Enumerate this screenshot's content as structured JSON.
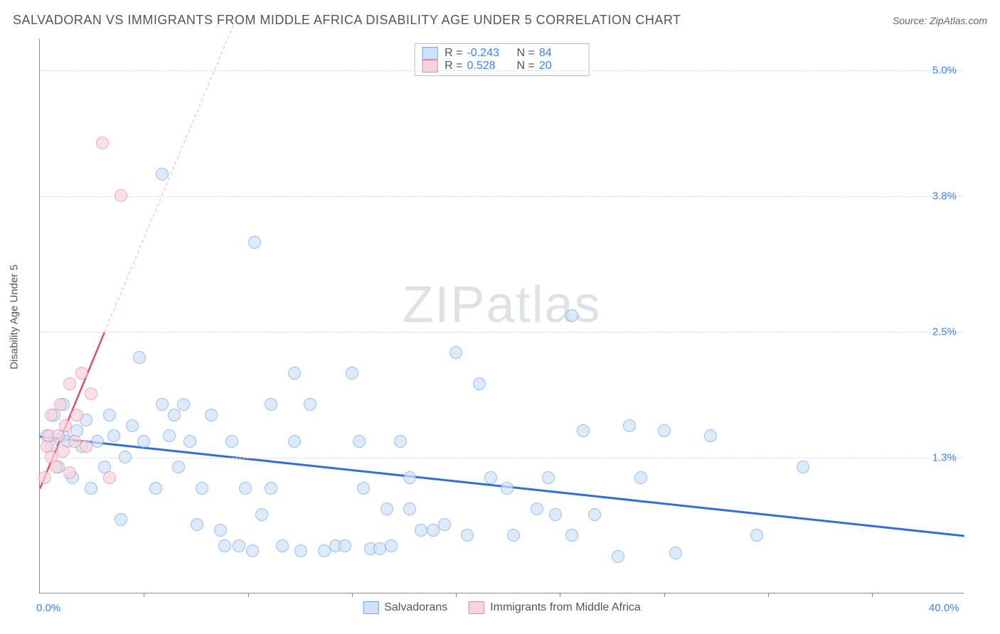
{
  "header": {
    "title": "SALVADORAN VS IMMIGRANTS FROM MIDDLE AFRICA DISABILITY AGE UNDER 5 CORRELATION CHART",
    "source_label": "Source: ",
    "source_value": "ZipAtlas.com"
  },
  "chart": {
    "type": "scatter",
    "ylabel": "Disability Age Under 5",
    "watermark": "ZIPatlas",
    "xlim": [
      0,
      40
    ],
    "ylim": [
      0,
      5.3
    ],
    "xtick_labels": [
      "0.0%",
      "40.0%"
    ],
    "xtick_positions": [
      0,
      40
    ],
    "xtick_minor": [
      4.5,
      9,
      13.5,
      18,
      22.5,
      27,
      31.5,
      36
    ],
    "ytick_labels": [
      "1.3%",
      "2.5%",
      "3.8%",
      "5.0%"
    ],
    "ytick_positions": [
      1.3,
      2.5,
      3.8,
      5.0
    ],
    "background_color": "#ffffff",
    "grid_color": "#dddddd",
    "axis_color": "#888888",
    "label_color": "#3b82f6",
    "marker_radius": 9,
    "marker_stroke_width": 1.5,
    "series": [
      {
        "name": "Salvadorans",
        "fill": "#cfe2f9",
        "stroke": "#6ea6e6",
        "fill_opacity": 0.7,
        "R": "-0.243",
        "N": "84",
        "trend": {
          "x1": 0,
          "y1": 1.5,
          "x2": 40,
          "y2": 0.55,
          "color": "#2f6fd6",
          "width": 3,
          "dash": "none"
        },
        "points": [
          [
            0.3,
            1.5
          ],
          [
            0.5,
            1.4
          ],
          [
            0.6,
            1.7
          ],
          [
            0.8,
            1.2
          ],
          [
            1.0,
            1.5
          ],
          [
            1.0,
            1.8
          ],
          [
            1.2,
            1.45
          ],
          [
            1.4,
            1.1
          ],
          [
            1.6,
            1.55
          ],
          [
            1.8,
            1.4
          ],
          [
            2.0,
            1.65
          ],
          [
            2.2,
            1.0
          ],
          [
            2.5,
            1.45
          ],
          [
            2.8,
            1.2
          ],
          [
            3.0,
            1.7
          ],
          [
            3.2,
            1.5
          ],
          [
            3.5,
            0.7
          ],
          [
            3.7,
            1.3
          ],
          [
            4.0,
            1.6
          ],
          [
            4.3,
            2.25
          ],
          [
            4.5,
            1.45
          ],
          [
            5.0,
            1.0
          ],
          [
            5.3,
            1.8
          ],
          [
            5.3,
            4.0
          ],
          [
            5.6,
            1.5
          ],
          [
            5.8,
            1.7
          ],
          [
            6.0,
            1.2
          ],
          [
            6.2,
            1.8
          ],
          [
            6.5,
            1.45
          ],
          [
            6.8,
            0.65
          ],
          [
            7.0,
            1.0
          ],
          [
            7.4,
            1.7
          ],
          [
            7.8,
            0.6
          ],
          [
            8.0,
            0.45
          ],
          [
            8.3,
            1.45
          ],
          [
            8.6,
            0.45
          ],
          [
            8.9,
            1.0
          ],
          [
            9.2,
            0.4
          ],
          [
            9.3,
            3.35
          ],
          [
            9.6,
            0.75
          ],
          [
            10.0,
            1.0
          ],
          [
            10.0,
            1.8
          ],
          [
            10.5,
            0.45
          ],
          [
            11.0,
            2.1
          ],
          [
            11.0,
            1.45
          ],
          [
            11.3,
            0.4
          ],
          [
            11.7,
            1.8
          ],
          [
            12.3,
            0.4
          ],
          [
            12.8,
            0.45
          ],
          [
            13.2,
            0.45
          ],
          [
            13.5,
            2.1
          ],
          [
            13.8,
            1.45
          ],
          [
            14.0,
            1.0
          ],
          [
            14.3,
            0.42
          ],
          [
            14.7,
            0.42
          ],
          [
            15.0,
            0.8
          ],
          [
            15.2,
            0.45
          ],
          [
            15.6,
            1.45
          ],
          [
            16.0,
            0.8
          ],
          [
            16.0,
            1.1
          ],
          [
            16.5,
            0.6
          ],
          [
            17.0,
            0.6
          ],
          [
            17.5,
            0.65
          ],
          [
            18.0,
            2.3
          ],
          [
            18.5,
            0.55
          ],
          [
            19.0,
            2.0
          ],
          [
            19.5,
            1.1
          ],
          [
            20.2,
            1.0
          ],
          [
            20.5,
            0.55
          ],
          [
            21.5,
            0.8
          ],
          [
            22.0,
            1.1
          ],
          [
            22.3,
            0.75
          ],
          [
            23.0,
            0.55
          ],
          [
            23.0,
            2.65
          ],
          [
            23.5,
            1.55
          ],
          [
            24.0,
            0.75
          ],
          [
            25.0,
            0.35
          ],
          [
            25.5,
            1.6
          ],
          [
            26.0,
            1.1
          ],
          [
            27.0,
            1.55
          ],
          [
            27.5,
            0.38
          ],
          [
            29.0,
            1.5
          ],
          [
            31.0,
            0.55
          ],
          [
            33.0,
            1.2
          ]
        ]
      },
      {
        "name": "Immigrants from Middle Africa",
        "fill": "#f9d4dc",
        "stroke": "#e688a0",
        "fill_opacity": 0.7,
        "R": "0.528",
        "N": "20",
        "trend_solid": {
          "x1": 0,
          "y1": 1.0,
          "x2": 2.8,
          "y2": 2.5,
          "color": "#e34b72",
          "width": 2.5
        },
        "trend_dash": {
          "x1": 2.8,
          "y1": 2.5,
          "x2": 8.5,
          "y2": 5.5,
          "color": "#f0a8ba",
          "width": 1,
          "dash": "4,4"
        },
        "points": [
          [
            0.2,
            1.1
          ],
          [
            0.3,
            1.4
          ],
          [
            0.4,
            1.5
          ],
          [
            0.5,
            1.3
          ],
          [
            0.5,
            1.7
          ],
          [
            0.7,
            1.2
          ],
          [
            0.8,
            1.5
          ],
          [
            0.9,
            1.8
          ],
          [
            1.0,
            1.35
          ],
          [
            1.1,
            1.6
          ],
          [
            1.3,
            1.15
          ],
          [
            1.3,
            2.0
          ],
          [
            1.5,
            1.45
          ],
          [
            1.6,
            1.7
          ],
          [
            1.8,
            2.1
          ],
          [
            2.0,
            1.4
          ],
          [
            2.2,
            1.9
          ],
          [
            2.7,
            4.3
          ],
          [
            3.0,
            1.1
          ],
          [
            3.5,
            3.8
          ]
        ]
      }
    ],
    "bottom_legend": [
      {
        "label": "Salvadorans",
        "fill": "#cfe2f9",
        "stroke": "#6ea6e6"
      },
      {
        "label": "Immigrants from Middle Africa",
        "fill": "#f9d4dc",
        "stroke": "#e688a0"
      }
    ]
  }
}
